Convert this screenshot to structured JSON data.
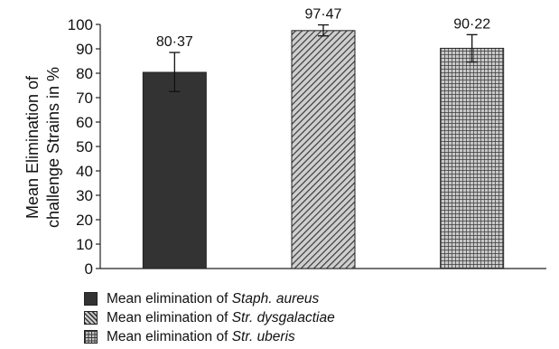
{
  "chart_data": {
    "type": "bar",
    "categories": [
      "Staph. aureus",
      "Str. dysgalactiae",
      "Str. uberis"
    ],
    "values": [
      80.37,
      97.47,
      90.22
    ],
    "value_labels": [
      "80·37",
      "97·47",
      "90·22"
    ],
    "error_low": [
      72.5,
      95.3,
      84.6
    ],
    "error_high": [
      88.5,
      99.8,
      95.8
    ],
    "ylabel_lines": [
      "Mean Elimination of",
      "challenge Strains in %"
    ],
    "xlabel": "",
    "ylim": [
      0,
      100
    ],
    "yticks": [
      0,
      10,
      20,
      30,
      40,
      50,
      60,
      70,
      80,
      90,
      100
    ],
    "grid": false,
    "legend_position": "bottom",
    "legend": [
      {
        "prefix": "Mean elimination of ",
        "name": "Staph. aureus",
        "pattern": "solid"
      },
      {
        "prefix": "Mean elimination of ",
        "name": "Str. dysgalactiae",
        "pattern": "diagonal-hatch"
      },
      {
        "prefix": "Mean elimination of ",
        "name": "Str. uberis",
        "pattern": "grid-hatch"
      }
    ],
    "colors": {
      "bar": "#333333",
      "hatch_bg": "#c8c8c8",
      "hatch_line": "#3a3a3a"
    }
  }
}
